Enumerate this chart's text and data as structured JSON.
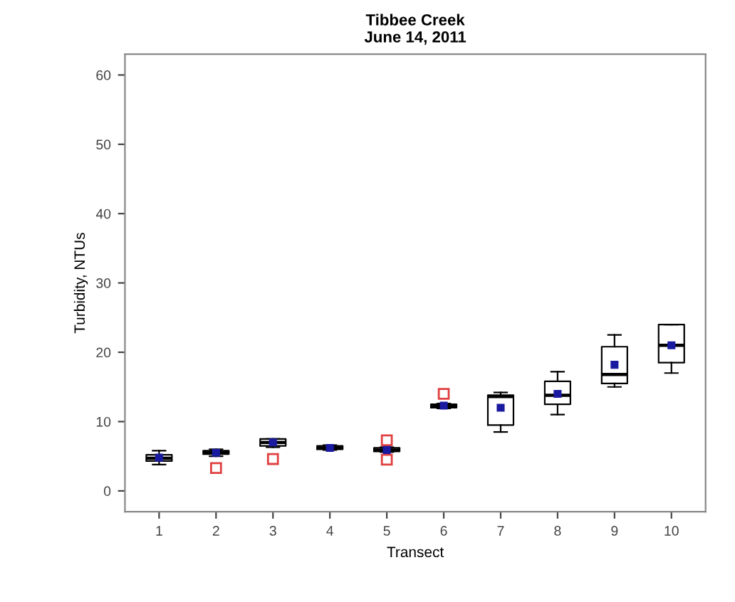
{
  "chart_data": {
    "type": "box",
    "title": "Tibbee Creek\nJune 14, 2011",
    "xlabel": "Transect",
    "ylabel": "Turbidity, NTUs",
    "categories": [
      "1",
      "2",
      "3",
      "4",
      "5",
      "6",
      "7",
      "8",
      "9",
      "10"
    ],
    "ylim": [
      -3,
      63
    ],
    "yticks": [
      0,
      10,
      20,
      30,
      40,
      50,
      60
    ],
    "grid": false,
    "color": "#000000",
    "boxes": [
      {
        "low": 3.8,
        "q1": 4.3,
        "median": 4.7,
        "q3": 5.2,
        "high": 5.8,
        "mean": 4.8
      },
      {
        "low": 5.0,
        "q1": 5.3,
        "median": 5.5,
        "q3": 5.8,
        "high": 6.0,
        "mean": 5.5,
        "outliers": [
          3.3
        ]
      },
      {
        "low": 6.3,
        "q1": 6.5,
        "median": 7.0,
        "q3": 7.5,
        "high": 7.5,
        "mean": 7.0,
        "outliers": [
          4.6
        ]
      },
      {
        "low": 5.9,
        "q1": 6.0,
        "median": 6.2,
        "q3": 6.5,
        "high": 6.6,
        "mean": 6.2
      },
      {
        "low": 5.6,
        "q1": 5.7,
        "median": 5.9,
        "q3": 6.2,
        "high": 6.3,
        "mean": 5.9,
        "outliers": [
          4.5,
          7.3
        ]
      },
      {
        "low": 11.9,
        "q1": 12.0,
        "median": 12.3,
        "q3": 12.5,
        "high": 12.6,
        "mean": 12.3,
        "outliers": [
          14.0
        ]
      },
      {
        "low": 8.5,
        "q1": 9.5,
        "median": 13.6,
        "q3": 13.8,
        "high": 14.2,
        "mean": 12.0
      },
      {
        "low": 11.0,
        "q1": 12.5,
        "median": 13.8,
        "q3": 15.8,
        "high": 17.2,
        "mean": 14.0
      },
      {
        "low": 15.0,
        "q1": 15.5,
        "median": 16.8,
        "q3": 20.8,
        "high": 22.5,
        "mean": 18.2
      },
      {
        "low": 17.0,
        "q1": 18.5,
        "median": 21.0,
        "q3": 24.0,
        "high": 24.0,
        "mean": 21.0
      }
    ]
  }
}
